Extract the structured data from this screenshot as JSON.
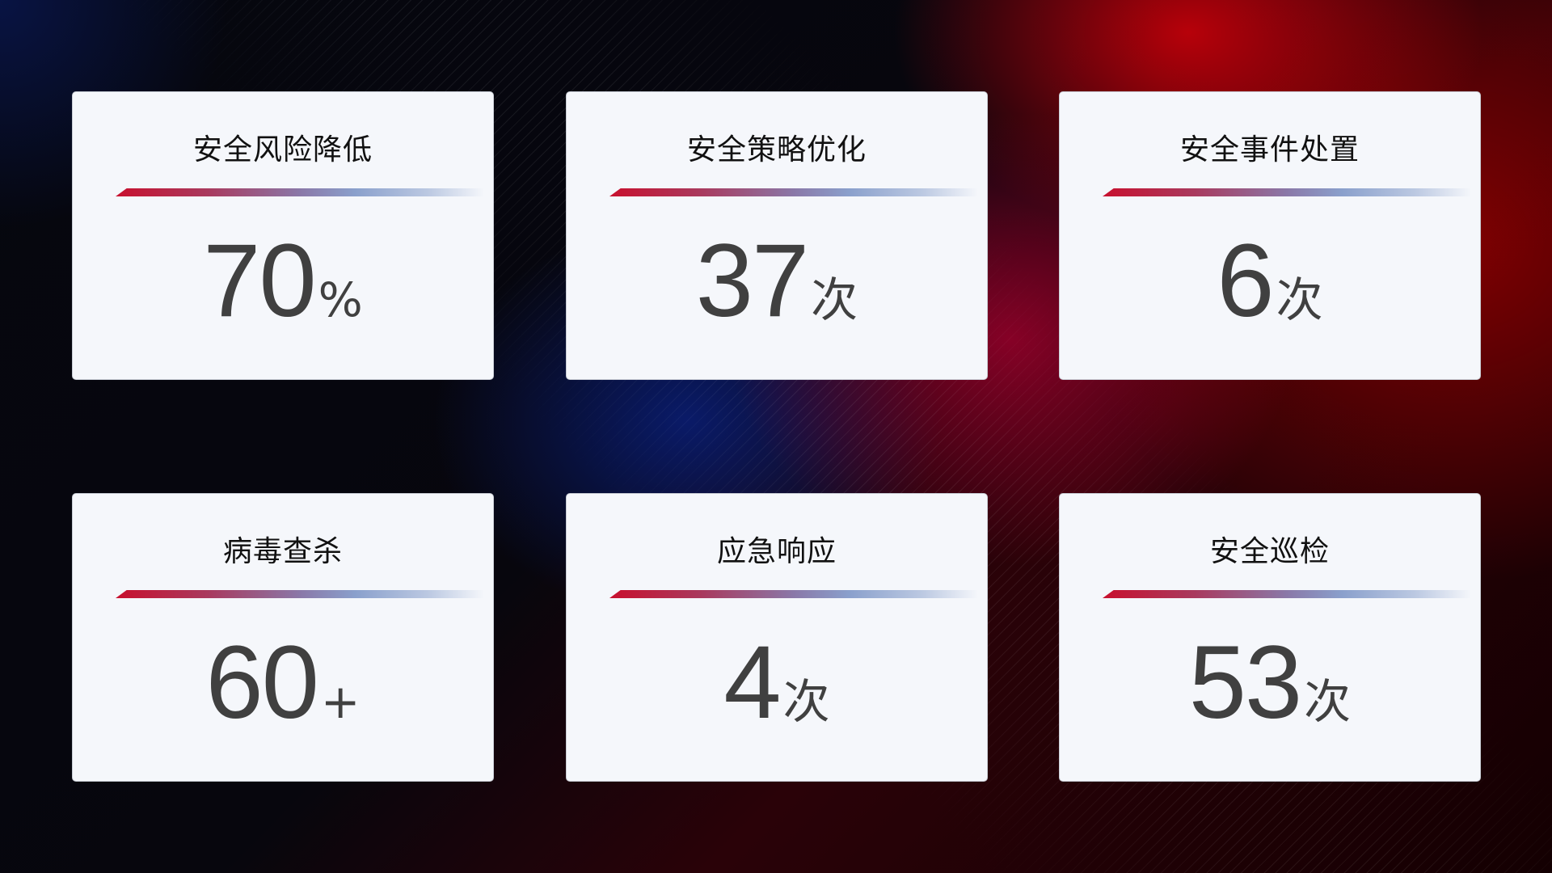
{
  "cards": [
    {
      "title": "安全风险降低",
      "value": "70",
      "unit": "%"
    },
    {
      "title": "安全策略优化",
      "value": "37",
      "unit": "次"
    },
    {
      "title": "安全事件处置",
      "value": "6",
      "unit": "次"
    },
    {
      "title": "病毒查杀",
      "value": "60",
      "unit": "+"
    },
    {
      "title": "应急响应",
      "value": "4",
      "unit": "次"
    },
    {
      "title": "安全巡检",
      "value": "53",
      "unit": "次"
    }
  ],
  "colors": {
    "accent_red": "#c8102e",
    "accent_blue": "#8aa0cc",
    "card_bg": "#f5f7fb",
    "value_text": "#404040"
  }
}
